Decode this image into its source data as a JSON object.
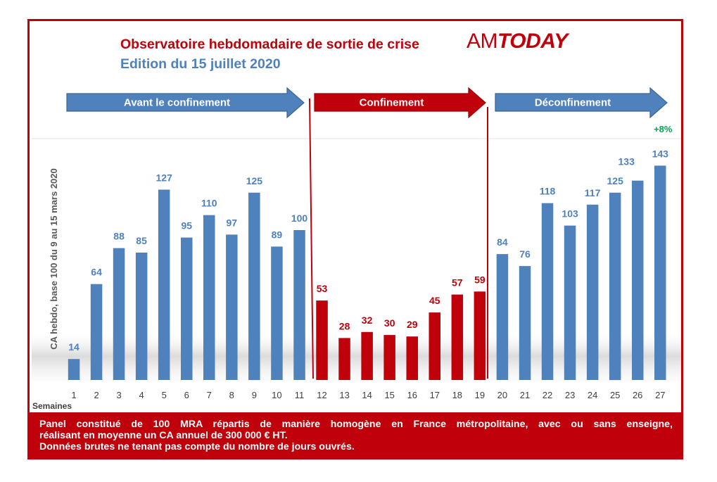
{
  "header": {
    "title": "Observatoire hebdomadaire de sortie de crise",
    "subtitle": "Edition du 15 juillet 2020",
    "logo_am": "AM",
    "logo_today": "TODAY"
  },
  "colors": {
    "frame": "#c0000a",
    "blue_bar": "#4f81bd",
    "red_bar": "#c0000a",
    "value_blue": "#4f81bd",
    "value_red": "#c0000a",
    "delta_green": "#00a651"
  },
  "phases": [
    {
      "label": "Avant le confinement",
      "color": "#4f81bd",
      "from_week": 1,
      "to_week": 11
    },
    {
      "label": "Confinement",
      "color": "#c0000a",
      "from_week": 12,
      "to_week": 19
    },
    {
      "label": "Déconfinement",
      "color": "#4f81bd",
      "from_week": 20,
      "to_week": 27
    }
  ],
  "chart_data": {
    "type": "bar",
    "title": "Observatoire hebdomadaire de sortie de crise",
    "subtitle": "Edition du 15 juillet 2020",
    "ylabel": "CA hebdo, base 100 du 9 au 15 mars 2020",
    "xlabel": "Semaines",
    "ylim": [
      0,
      150
    ],
    "grid": false,
    "categories": [
      "1",
      "2",
      "3",
      "4",
      "5",
      "6",
      "7",
      "8",
      "9",
      "10",
      "11",
      "12",
      "13",
      "14",
      "15",
      "16",
      "17",
      "18",
      "19",
      "20",
      "21",
      "22",
      "23",
      "24",
      "25",
      "26",
      "27"
    ],
    "values": [
      14,
      64,
      88,
      85,
      127,
      95,
      110,
      97,
      125,
      89,
      100,
      53,
      28,
      32,
      30,
      29,
      45,
      57,
      59,
      84,
      76,
      118,
      103,
      117,
      125,
      133,
      143
    ],
    "bar_labels": [
      "14",
      "64",
      "88",
      "85",
      "127",
      "95",
      "110",
      "97",
      "125",
      "89",
      "100",
      "53",
      "28",
      "32",
      "30",
      "29",
      "45",
      "57",
      "59",
      "84",
      "76",
      "118",
      "103",
      "117",
      "125",
      "",
      "143"
    ],
    "label_133": "133",
    "annotation": {
      "week": 27,
      "text": "+8%"
    }
  },
  "footer": {
    "line1": "Panel constitué de 100 MRA répartis de manière homogène en France métropolitaine, avec ou sans enseigne,",
    "line2": "réalisant en moyenne un CA annuel de 300 000 € HT.",
    "line3": "Données brutes ne tenant pas compte du nombre de jours ouvrés."
  }
}
